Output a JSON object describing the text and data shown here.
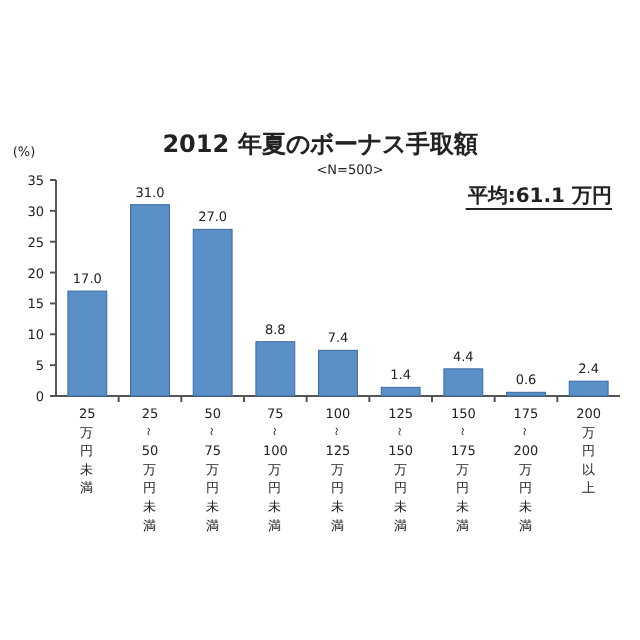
{
  "chart_data": {
    "type": "bar",
    "title": "2012 年夏のボーナス手取額",
    "subtitle": "<N=500>",
    "ylabel": "(%)",
    "annotations": [
      "平均:61.1 万円"
    ],
    "categories": [
      "25万円未満",
      "25～50万円未満",
      "50～75万円未満",
      "75～100万円未満",
      "100～125万円未満",
      "125～150万円未満",
      "150～175万円未満",
      "175～200万円未満",
      "200万円以上"
    ],
    "values": [
      17.0,
      31.0,
      27.0,
      8.8,
      7.4,
      1.4,
      4.4,
      0.6,
      2.4
    ],
    "color": "#5b8fc8",
    "ylim": [
      0,
      35
    ],
    "yticks": [
      0,
      5,
      10,
      15,
      20,
      25,
      30,
      35
    ],
    "value_labels": [
      "17.0",
      "31.0",
      "27.0",
      "8.8",
      "7.4",
      "1.4",
      "4.4",
      "0.6",
      "2.4"
    ],
    "grid": false
  }
}
